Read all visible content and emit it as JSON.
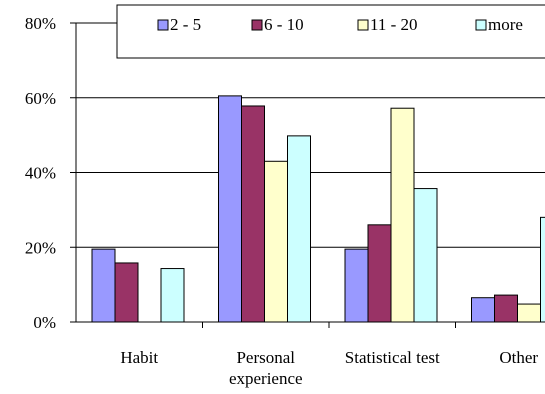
{
  "chart_data": {
    "type": "bar",
    "categories": [
      "Habit",
      "Personal experience",
      "Statistical test",
      "Other"
    ],
    "category_lines": [
      [
        "Habit"
      ],
      [
        "Personal",
        "experience"
      ],
      [
        "Statistical test"
      ],
      [
        "Other"
      ]
    ],
    "series": [
      {
        "name": "2 - 5",
        "color": "#9999ff",
        "values": [
          19.5,
          60.5,
          19.5,
          6.5
        ]
      },
      {
        "name": "6 - 10",
        "color": "#993366",
        "values": [
          15.8,
          57.8,
          26.0,
          7.2
        ]
      },
      {
        "name": "11 - 20",
        "color": "#ffffcc",
        "values": [
          null,
          43.0,
          57.2,
          4.8
        ]
      },
      {
        "name": "more",
        "color": "#ccffff",
        "values": [
          14.3,
          49.8,
          35.7,
          28.0
        ]
      }
    ],
    "ylim": [
      0,
      80
    ],
    "yticks": [
      0,
      20,
      40,
      60,
      80
    ],
    "ytick_labels": [
      "0%",
      "20%",
      "40%",
      "60%",
      "80%"
    ],
    "grid": true,
    "legend_position": "top"
  }
}
